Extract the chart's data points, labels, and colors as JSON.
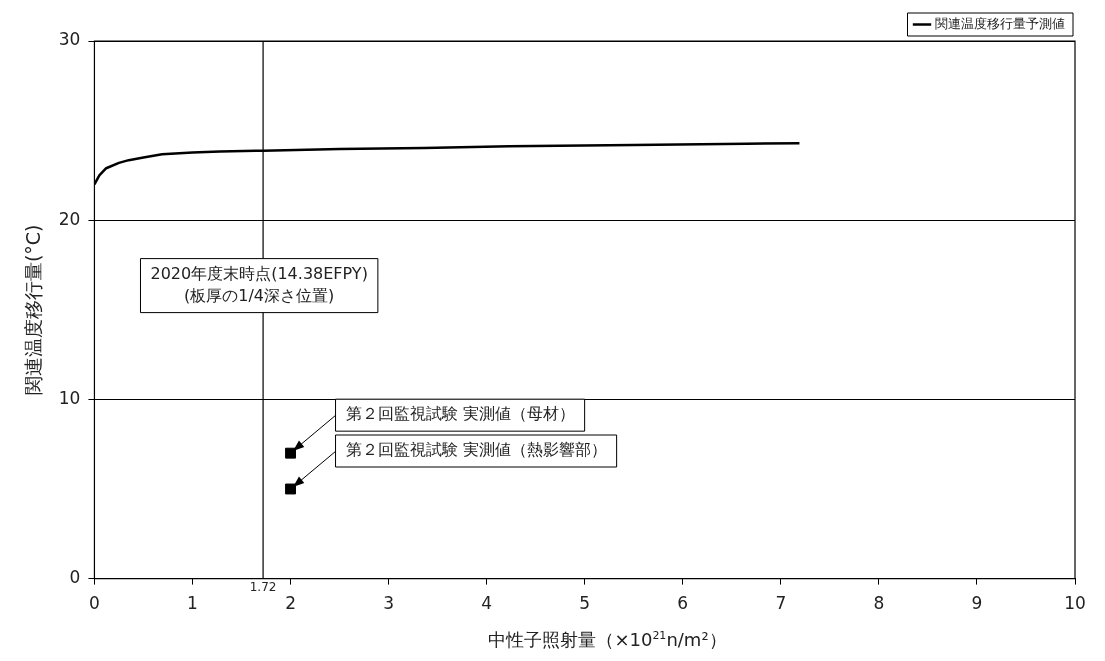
{
  "chart_data": {
    "type": "line",
    "xlabel": "中性子照射量（×10$^{21}$n/m²）",
    "ylabel": "関連温度移行量(°C)",
    "xlim": [
      0,
      10
    ],
    "xticks": [
      0,
      1,
      2,
      3,
      4,
      5,
      6,
      7,
      8,
      9,
      10
    ],
    "ylim": [
      0,
      30
    ],
    "yticks": [
      0,
      10,
      20,
      30
    ],
    "series": [
      {
        "name": "関連温度移行量予測値",
        "type": "line",
        "color": "#000000",
        "marker": "none",
        "x": [
          0,
          0.05,
          0.12,
          0.25,
          0.35,
          0.5,
          0.69,
          1.0,
          1.28,
          1.72,
          2.5,
          3.36,
          4.23,
          5.5,
          6.65,
          7.19
        ],
        "values": [
          22.0,
          22.5,
          22.9,
          23.2,
          23.35,
          23.5,
          23.68,
          23.78,
          23.84,
          23.88,
          23.97,
          24.03,
          24.12,
          24.2,
          24.27,
          24.3
        ]
      },
      {
        "type": "scatter",
        "color": "#000000",
        "marker": "square",
        "x": [
          2,
          2
        ],
        "values": [
          7,
          5
        ]
      }
    ],
    "ref_lines": [
      {
        "axis": "x",
        "value": 1.72,
        "label": "1.72",
        "color": "#000000"
      }
    ],
    "annotations": [
      "2020年度末時点(14.38EFPY)\n(板厚の1/4深さ位置)",
      {
        "text": "第２回監視試験 実測値（母材）",
        "x": 2,
        "y": 7
      },
      {
        "text": "第２回監視試験 実測値（熱影響部）",
        "x": 2,
        "y": 5
      }
    ],
    "grid": "y",
    "legend": "top right"
  }
}
